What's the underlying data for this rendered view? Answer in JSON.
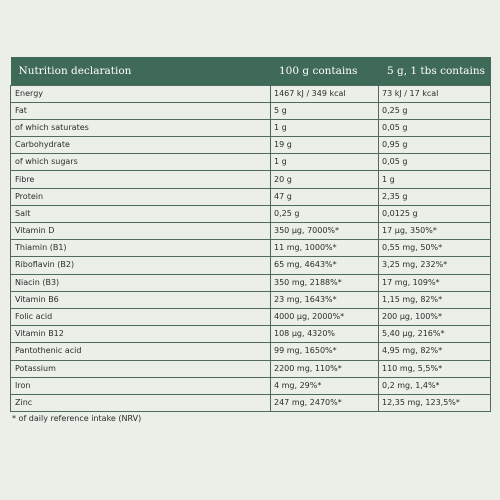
{
  "table": {
    "headers": [
      "Nutrition declaration",
      "100 g contains",
      "5 g, 1 tbs contains"
    ],
    "rows": [
      [
        "Energy",
        "1467 kJ / 349 kcal",
        "73 kJ / 17 kcal"
      ],
      [
        "Fat",
        "5 g",
        "0,25 g"
      ],
      [
        "of which saturates",
        "1 g",
        "0,05 g"
      ],
      [
        "Carbohydrate",
        "19 g",
        "0,95 g"
      ],
      [
        "of which sugars",
        "1 g",
        "0,05 g"
      ],
      [
        "Fibre",
        "20 g",
        "1 g"
      ],
      [
        "Protein",
        "47 g",
        "2,35 g"
      ],
      [
        "Salt",
        "0,25 g",
        "0,0125 g"
      ],
      [
        "Vitamin D",
        "350 μg, 7000%*",
        "17 μg, 350%*"
      ],
      [
        "Thiamin (B1)",
        "11 mg, 1000%*",
        "0,55 mg, 50%*"
      ],
      [
        "Riboflavin (B2)",
        "65 mg, 4643%*",
        "3,25 mg, 232%*"
      ],
      [
        "Niacin (B3)",
        "350 mg, 2188%*",
        "17 mg, 109%*"
      ],
      [
        "Vitamin B6",
        "23 mg, 1643%*",
        "1,15 mg, 82%*"
      ],
      [
        "Folic acid",
        "4000 μg, 2000%*",
        "200 μg, 100%*"
      ],
      [
        "Vitamin B12",
        "108 μg, 4320%",
        "5,40 μg, 216%*"
      ],
      [
        "Pantothenic acid",
        "99 mg, 1650%*",
        "4,95 mg, 82%*"
      ],
      [
        "Potassium",
        "2200 mg, 110%*",
        "110 mg, 5,5%*"
      ],
      [
        "Iron",
        "4 mg, 29%*",
        "0,2 mg, 1,4%*"
      ],
      [
        "Zinc",
        "247 mg, 2470%*",
        "12,35 mg, 123,5%*"
      ]
    ]
  },
  "footnote": "* of daily reference intake (NRV)",
  "colors": {
    "background": "#ebefe8",
    "header": "#3f6a58",
    "border": "#4f6b5e"
  }
}
